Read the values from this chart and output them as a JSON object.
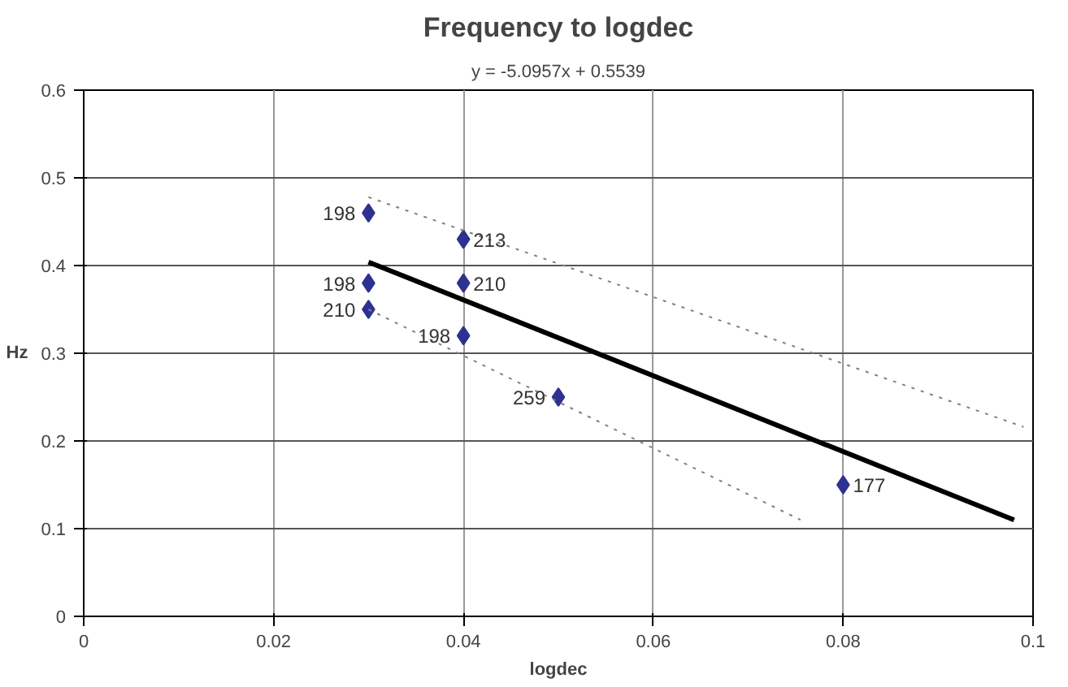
{
  "chart_data": {
    "type": "scatter",
    "title": "Frequency to logdec",
    "subtitle": "y = -5.0957x + 0.5539",
    "xlabel": "logdec",
    "ylabel": "Hz",
    "xlim": [
      0,
      0.1
    ],
    "xticks": [
      0,
      0.02,
      0.04,
      0.06,
      0.08,
      0.1
    ],
    "ylim": [
      0,
      0.6
    ],
    "yticks": [
      0,
      0.1,
      0.2,
      0.3,
      0.4,
      0.5,
      0.6
    ],
    "grid": true,
    "marker": "diamond",
    "series": [
      {
        "color": "#2e3192",
        "x": [
          0.03,
          0.04,
          0.03,
          0.04,
          0.03,
          0.04,
          0.05,
          0.08
        ],
        "values": [
          0.46,
          0.43,
          0.38,
          0.38,
          0.35,
          0.32,
          0.25,
          0.15
        ]
      },
      {
        "type": "line",
        "color": "#000000",
        "marker": "none",
        "line_style": "solid",
        "x": [
          0.03,
          0.098
        ],
        "values": [
          0.404,
          0.11
        ]
      },
      {
        "type": "line",
        "color": "#808080",
        "marker": "none",
        "line_style": "dotted",
        "x": [
          0.03,
          0.099
        ],
        "values": [
          0.478,
          0.216
        ]
      },
      {
        "type": "line",
        "color": "#808080",
        "marker": "none",
        "line_style": "dotted",
        "x": [
          0.03,
          0.0755
        ],
        "values": [
          0.35,
          0.11
        ]
      }
    ],
    "annotations": [
      {
        "text": "198",
        "x": 0.03,
        "y": 0.46
      },
      {
        "text": "213",
        "x": 0.04,
        "y": 0.43
      },
      {
        "text": "198",
        "x": 0.03,
        "y": 0.38
      },
      {
        "text": "210",
        "x": 0.04,
        "y": 0.38
      },
      {
        "text": "210",
        "x": 0.03,
        "y": 0.35
      },
      {
        "text": "198",
        "x": 0.04,
        "y": 0.32
      },
      {
        "text": "259",
        "x": 0.05,
        "y": 0.25
      },
      {
        "text": "177",
        "x": 0.08,
        "y": 0.15
      }
    ]
  }
}
